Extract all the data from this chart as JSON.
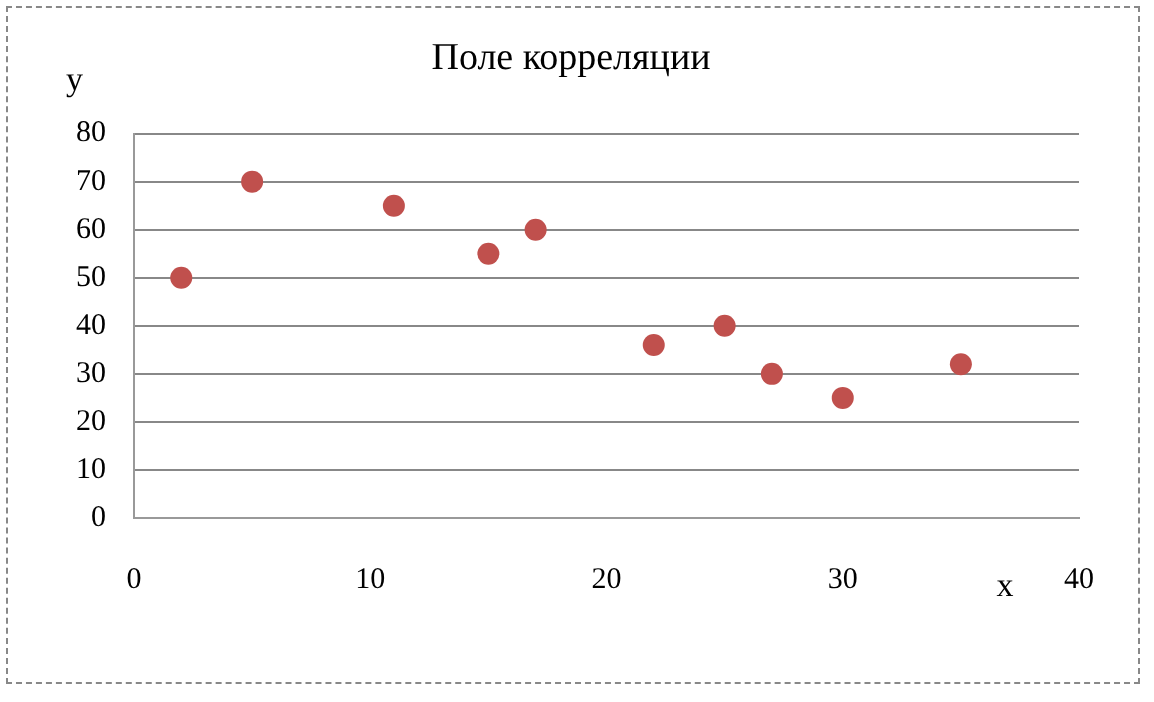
{
  "chart_data": {
    "type": "scatter",
    "title": "Поле корреляции",
    "xlabel": "x",
    "ylabel": "y",
    "x": [
      2,
      5,
      11,
      15,
      17,
      22,
      25,
      27,
      30,
      35
    ],
    "series": [
      {
        "color": "#c0504d",
        "values": [
          50,
          70,
          65,
          55,
          60,
          36,
          40,
          30,
          25,
          32
        ]
      }
    ],
    "xlim": [
      0,
      40
    ],
    "xticks": [
      0,
      10,
      20,
      30,
      40
    ],
    "ylim": [
      0,
      80
    ],
    "yticks": [
      0,
      10,
      20,
      30,
      40,
      50,
      60,
      70,
      80
    ],
    "grid": "y",
    "legend": false,
    "marker": "circle"
  }
}
